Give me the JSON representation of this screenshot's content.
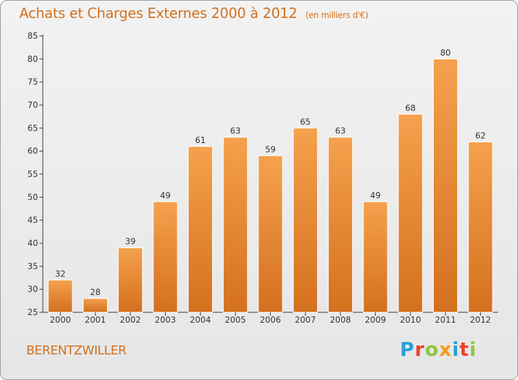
{
  "title": "Achats et Charges Externes 2000 à 2012",
  "unit": "(en milliers d'€)",
  "commune": "BERENTZWILLER",
  "logo": {
    "letters": [
      "P",
      "r",
      "o",
      "x",
      "i",
      "t",
      "i"
    ],
    "colors": [
      "#2a9fd8",
      "#e8432e",
      "#8cc63f",
      "#f29c1f",
      "#2a9fd8",
      "#e8432e",
      "#8cc63f"
    ]
  },
  "colors": {
    "bar_top": "#f5a14d",
    "bar_bottom": "#d4701e",
    "text_accent": "#d4701e",
    "axis": "#333333"
  },
  "chart_data": {
    "type": "bar",
    "title": "Achats et Charges Externes 2000 à 2012",
    "categories": [
      "2000",
      "2001",
      "2002",
      "2003",
      "2004",
      "2005",
      "2006",
      "2007",
      "2008",
      "2009",
      "2010",
      "2011",
      "2012"
    ],
    "values": [
      32,
      28,
      39,
      49,
      61,
      63,
      59,
      65,
      63,
      49,
      68,
      80,
      62
    ],
    "ylim": [
      25,
      85
    ],
    "yticks": [
      25,
      30,
      35,
      40,
      45,
      50,
      55,
      60,
      65,
      70,
      75,
      80,
      85
    ],
    "grid": false,
    "data_labels": true
  }
}
